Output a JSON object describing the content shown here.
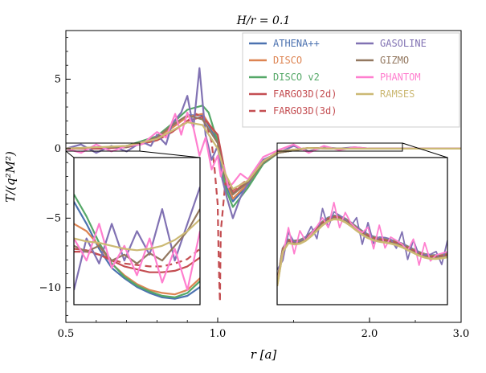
{
  "chart_data": {
    "type": "line",
    "title": "H/r = 0.1",
    "xlabel": "r [a]",
    "ylabel": "T/(q²M²)",
    "xlim": [
      0.5,
      3.0
    ],
    "ylim": [
      -12.5,
      8.5
    ],
    "xticks": [
      {
        "v": 0.5,
        "label": "0.5"
      },
      {
        "v": 1.0,
        "label": "1.0"
      },
      {
        "v": 2.0,
        "label": "2.0"
      },
      {
        "v": 3.0,
        "label": "3.0"
      }
    ],
    "yticks": [
      {
        "v": -10,
        "label": "−10"
      },
      {
        "v": -5,
        "label": "−5"
      },
      {
        "v": 0,
        "label": "0"
      },
      {
        "v": 5,
        "label": "5"
      }
    ],
    "legend_position": "top-right",
    "series": [
      {
        "name": "ATHENA++",
        "color": "#4c72b0",
        "dash": "",
        "x": [
          0.5,
          0.6,
          0.7,
          0.8,
          0.85,
          0.9,
          0.95,
          1.0,
          1.05,
          1.1,
          1.2,
          1.3,
          1.4,
          1.6,
          1.8,
          2.0,
          2.5,
          3.0
        ],
        "y": [
          0.0,
          0.0,
          0.2,
          0.8,
          1.6,
          2.4,
          2.4,
          0.6,
          -2.5,
          -3.8,
          -2.6,
          -1.1,
          -0.3,
          0.05,
          0.0,
          0.0,
          0.0,
          0.0
        ]
      },
      {
        "name": "DISCO",
        "color": "#dd8452",
        "dash": "",
        "x": [
          0.5,
          0.6,
          0.7,
          0.8,
          0.85,
          0.9,
          0.95,
          1.0,
          1.05,
          1.1,
          1.2,
          1.3,
          1.4,
          1.6,
          1.8,
          2.0,
          2.5,
          3.0
        ],
        "y": [
          0.0,
          0.0,
          0.2,
          0.8,
          1.5,
          2.3,
          2.5,
          0.8,
          -2.2,
          -3.6,
          -2.5,
          -1.0,
          -0.3,
          0.05,
          0.0,
          0.0,
          0.0,
          0.0
        ]
      },
      {
        "name": "DISCO v2",
        "color": "#55a868",
        "dash": "",
        "x": [
          0.5,
          0.6,
          0.7,
          0.8,
          0.85,
          0.9,
          0.95,
          0.97,
          1.0,
          1.05,
          1.1,
          1.2,
          1.3,
          1.4,
          1.6,
          1.8,
          2.0,
          2.5,
          3.0
        ],
        "y": [
          0.0,
          0.0,
          0.2,
          0.9,
          1.8,
          2.8,
          3.1,
          2.6,
          0.5,
          -2.8,
          -4.2,
          -2.8,
          -1.1,
          -0.3,
          0.05,
          0.0,
          0.0,
          0.0,
          0.0
        ]
      },
      {
        "name": "FARGO3D(2d)",
        "color": "#c44e52",
        "dash": "",
        "x": [
          0.5,
          0.6,
          0.7,
          0.8,
          0.85,
          0.9,
          0.95,
          1.0,
          1.05,
          1.1,
          1.2,
          1.3,
          1.4,
          1.6,
          1.8,
          2.0,
          2.5,
          3.0
        ],
        "y": [
          0.0,
          0.0,
          0.1,
          0.6,
          1.2,
          2.0,
          2.3,
          1.0,
          -1.8,
          -3.2,
          -2.3,
          -0.9,
          -0.2,
          0.05,
          0.0,
          0.0,
          0.0,
          0.0
        ]
      },
      {
        "name": "FARGO3D(3d)",
        "color": "#c44e52",
        "dash": "8,5",
        "x": [
          0.5,
          0.6,
          0.7,
          0.8,
          0.85,
          0.9,
          0.93,
          0.96,
          0.98,
          0.99,
          1.0,
          1.005,
          1.01,
          1.015,
          1.02,
          1.05,
          1.1,
          1.2,
          1.3,
          1.4,
          1.6,
          1.8,
          2.0,
          2.5,
          3.0
        ],
        "y": [
          0.0,
          0.0,
          0.1,
          0.6,
          1.2,
          2.0,
          2.5,
          2.0,
          0.5,
          -1.5,
          -4.0,
          -7.0,
          -9.5,
          -11.0,
          -6.0,
          -2.5,
          -3.0,
          -2.2,
          -0.9,
          -0.2,
          0.05,
          0.0,
          0.0,
          0.0,
          0.0
        ]
      },
      {
        "name": "GASOLINE",
        "color": "#8172b3",
        "dash": "",
        "x": [
          0.5,
          0.55,
          0.6,
          0.65,
          0.7,
          0.75,
          0.78,
          0.8,
          0.83,
          0.85,
          0.88,
          0.9,
          0.92,
          0.94,
          0.96,
          0.98,
          1.0,
          1.03,
          1.06,
          1.1,
          1.15,
          1.2,
          1.3,
          1.4,
          1.5,
          1.6,
          1.7,
          1.8,
          1.9,
          2.0,
          2.2,
          2.5,
          3.0
        ],
        "y": [
          0.0,
          0.3,
          -0.3,
          0.2,
          -0.2,
          0.5,
          0.2,
          1.0,
          0.3,
          1.8,
          2.6,
          3.8,
          1.5,
          5.8,
          1.0,
          -0.8,
          0.2,
          -2.2,
          -3.5,
          -5.0,
          -3.5,
          -2.5,
          -0.8,
          -0.3,
          0.2,
          -0.2,
          0.1,
          0.0,
          0.1,
          0.0,
          0.0,
          0.0,
          0.0
        ]
      },
      {
        "name": "GIZMO",
        "color": "#937860",
        "dash": "",
        "x": [
          0.5,
          0.6,
          0.7,
          0.8,
          0.85,
          0.9,
          0.95,
          1.0,
          1.05,
          1.1,
          1.2,
          1.3,
          1.4,
          1.6,
          1.8,
          2.0,
          2.5,
          3.0
        ],
        "y": [
          0.0,
          0.1,
          0.1,
          0.8,
          1.7,
          2.4,
          2.1,
          0.4,
          -2.1,
          -3.3,
          -2.4,
          -1.0,
          -0.3,
          0.05,
          0.0,
          0.0,
          0.0,
          0.0
        ]
      },
      {
        "name": "PHANTOM",
        "color": "#ff7fcf",
        "dash": "",
        "x": [
          0.5,
          0.55,
          0.6,
          0.65,
          0.7,
          0.75,
          0.8,
          0.83,
          0.86,
          0.88,
          0.9,
          0.92,
          0.94,
          0.96,
          0.98,
          1.0,
          1.02,
          1.04,
          1.07,
          1.1,
          1.15,
          1.2,
          1.3,
          1.4,
          1.5,
          1.6,
          1.7,
          1.8,
          1.9,
          2.0,
          2.2,
          2.5,
          3.0
        ],
        "y": [
          0.0,
          -0.3,
          0.3,
          -0.2,
          0.2,
          0.3,
          1.2,
          0.8,
          2.5,
          1.0,
          2.6,
          1.5,
          -0.5,
          0.8,
          -1.5,
          -0.5,
          -2.0,
          -1.2,
          -2.8,
          -2.5,
          -1.8,
          -2.2,
          -0.6,
          -0.1,
          0.3,
          -0.3,
          0.2,
          -0.1,
          0.1,
          0.0,
          0.0,
          0.0,
          0.0
        ]
      },
      {
        "name": "RAMSES",
        "color": "#ccb974",
        "dash": "",
        "x": [
          0.5,
          0.6,
          0.7,
          0.8,
          0.85,
          0.9,
          0.95,
          1.0,
          1.05,
          1.1,
          1.2,
          1.3,
          1.4,
          1.6,
          1.8,
          2.0,
          2.5,
          3.0
        ],
        "y": [
          0.0,
          0.1,
          0.2,
          0.7,
          1.3,
          1.9,
          1.7,
          0.0,
          -1.8,
          -2.9,
          -2.3,
          -0.9,
          -0.2,
          0.05,
          0.0,
          0.0,
          0.0,
          0.0
        ]
      }
    ],
    "insets": [
      {
        "source_x": [
          0.5,
          0.96
        ],
        "source_y": [
          -0.6,
          0.5
        ],
        "content": "zoom of r 0.5–0.96"
      },
      {
        "source_x": [
          1.36,
          2.58
        ],
        "source_y": [
          -0.35,
          0.35
        ],
        "content": "zoom of r 1.36–2.58"
      }
    ]
  }
}
